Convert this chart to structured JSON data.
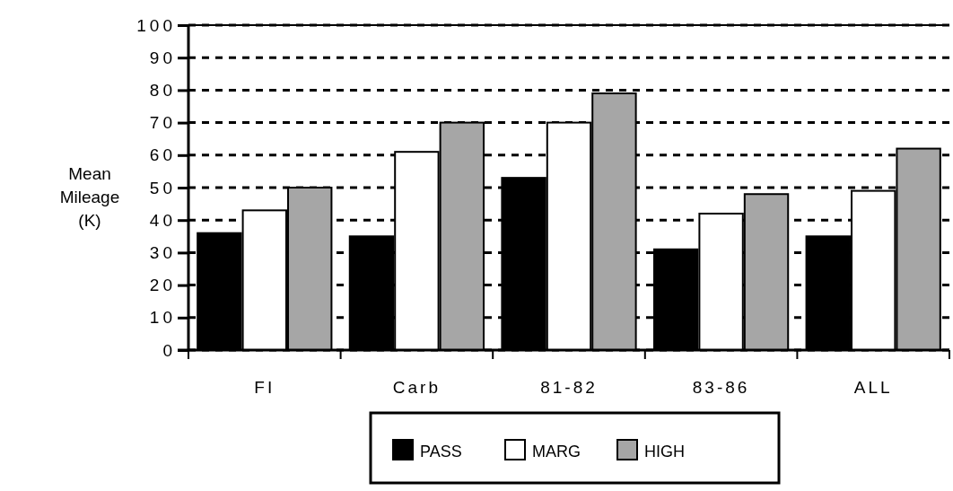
{
  "chart_data": {
    "type": "bar",
    "ylabel": "Mean Mileage (K)",
    "categories": [
      "FI",
      "Carb",
      "81-82",
      "83-86",
      "ALL"
    ],
    "series": [
      {
        "name": "PASS",
        "color": "#000000",
        "values": [
          36,
          35,
          53,
          31,
          35
        ]
      },
      {
        "name": "MARG",
        "color": "#ffffff",
        "values": [
          43,
          61,
          70,
          42,
          49
        ]
      },
      {
        "name": "HIGH",
        "color": "#a6a6a6",
        "values": [
          50,
          70,
          79,
          48,
          62
        ]
      }
    ],
    "ylim": [
      0,
      100
    ],
    "yticks": [
      0,
      10,
      20,
      30,
      40,
      50,
      60,
      70,
      80,
      90,
      100
    ],
    "grid": "y",
    "legend": "bottom"
  }
}
